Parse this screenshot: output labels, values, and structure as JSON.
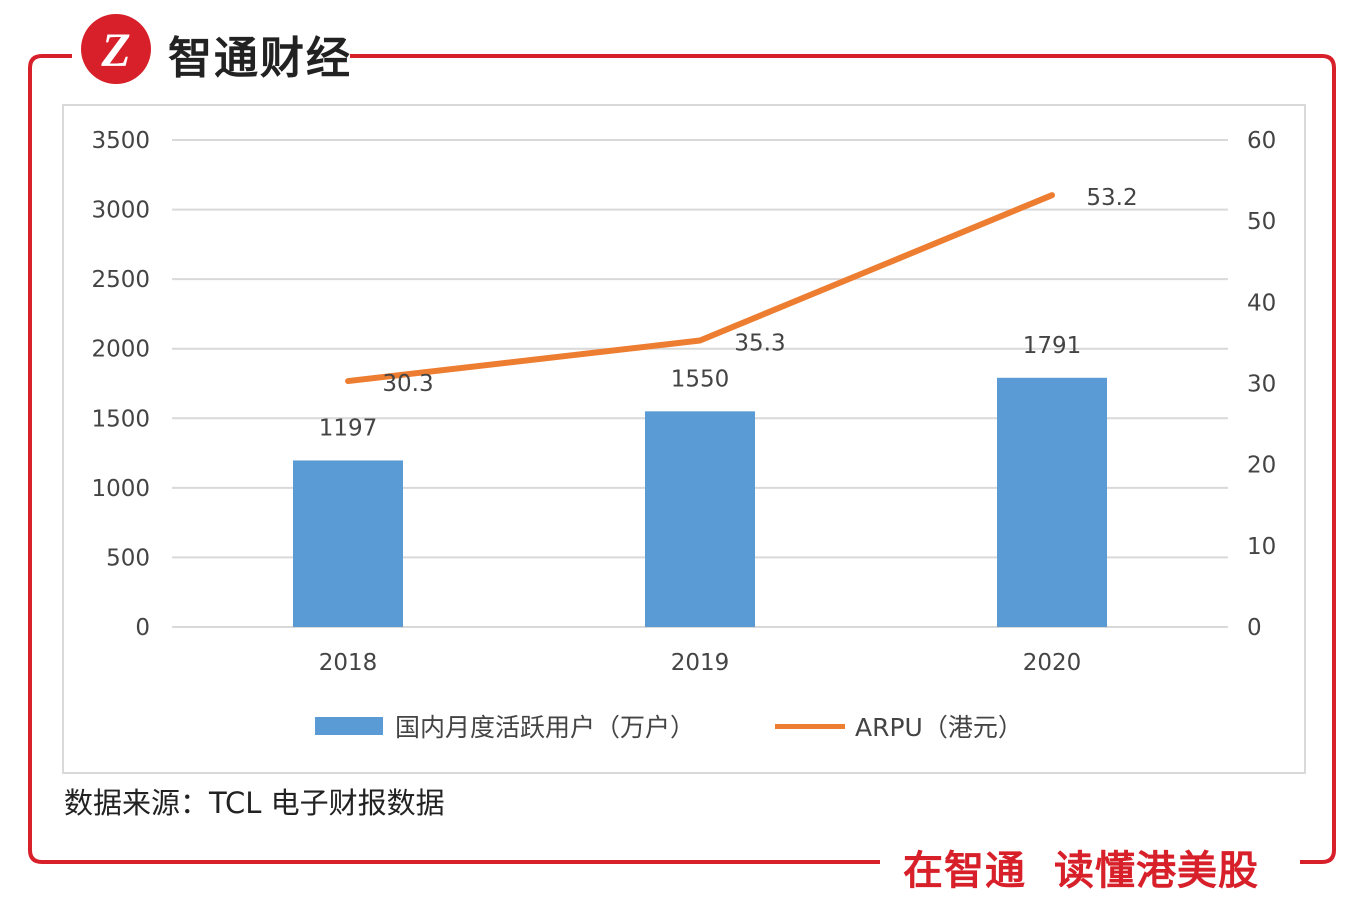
{
  "brand": {
    "name": "智通财经",
    "logo_text": "Z",
    "slogan_parts": [
      "在智通",
      "读懂港美股"
    ]
  },
  "colors": {
    "brand_red": "#d7202a",
    "bar_blue": "#5b9bd5",
    "line_orange": "#ed7d31",
    "grid": "#d9d9d9",
    "text": "#444444"
  },
  "source_note": "数据来源：TCL 电子财报数据",
  "chart_data": {
    "type": "bar+line",
    "categories": [
      "2018",
      "2019",
      "2020"
    ],
    "series": [
      {
        "name": "国内月度活跃用户（万户）",
        "type": "bar",
        "axis": "left",
        "values": [
          1197,
          1550,
          1791
        ],
        "labels": [
          "1197",
          "1550",
          "1791"
        ]
      },
      {
        "name": "ARPU（港元）",
        "type": "line",
        "axis": "right",
        "values": [
          30.3,
          35.3,
          53.2
        ],
        "labels": [
          "30.3",
          "35.3",
          "53.2"
        ]
      }
    ],
    "y_left": {
      "min": 0,
      "max": 3500,
      "ticks": [
        "0",
        "500",
        "1000",
        "1500",
        "2000",
        "2500",
        "3000",
        "3500"
      ]
    },
    "y_right": {
      "min": 0,
      "max": 60,
      "ticks": [
        "0",
        "10",
        "20",
        "30",
        "40",
        "50",
        "60"
      ]
    },
    "grid": true,
    "legend_position": "bottom"
  }
}
